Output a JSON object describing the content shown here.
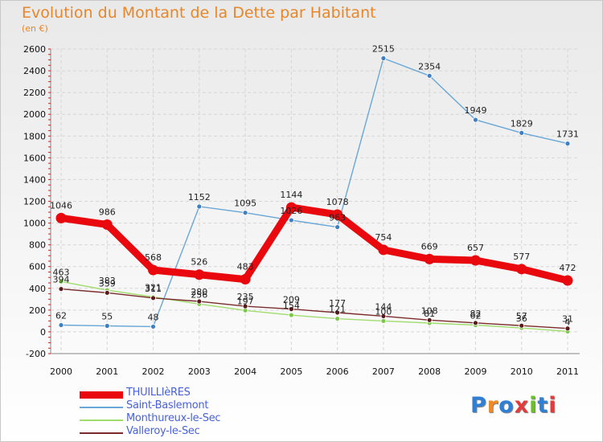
{
  "header": {
    "title": "Evolution du Montant de la Dette par Habitant",
    "unit": "(en €)"
  },
  "brand": {
    "text": "Proxiti",
    "colors": [
      "#2f7fd4",
      "#f08a24",
      "#2f7fd4",
      "#e33b3b",
      "#6cbf2a",
      "#2f7fd4",
      "#e33b3b"
    ]
  },
  "chart_data": {
    "type": "line",
    "title": "Evolution du Montant de la Dette par Habitant",
    "ylabel": "(en €)",
    "xlabel": "",
    "x": [
      "2000",
      "2001",
      "2002",
      "2003",
      "2004",
      "2005",
      "2006",
      "2007",
      "2008",
      "2009",
      "2010",
      "2011"
    ],
    "ylim": [
      -200,
      2600
    ],
    "yticks": [
      -200,
      0,
      200,
      400,
      600,
      800,
      1000,
      1200,
      1400,
      1600,
      1800,
      2000,
      2200,
      2400,
      2600
    ],
    "grid": true,
    "legend_position": "bottom-left",
    "series": [
      {
        "name": "THUILLIèRES",
        "color": "#e8080d",
        "values": [
          1046,
          986,
          568,
          526,
          483,
          1144,
          1078,
          754,
          669,
          657,
          577,
          472
        ]
      },
      {
        "name": "Saint-Baslemont",
        "color": "#6aa7d6",
        "values": [
          62,
          55,
          48,
          1152,
          1095,
          1026,
          963,
          2515,
          2354,
          1949,
          1829,
          1731
        ]
      },
      {
        "name": "Monthureux-le-Sec",
        "color": "#a0dc6e",
        "values": [
          463,
          383,
          321,
          256,
          197,
          154,
          121,
          100,
          81,
          62,
          36,
          4
        ]
      },
      {
        "name": "Valleroy-le-Sec",
        "color": "#7a2b2b",
        "values": [
          394,
          359,
          311,
          280,
          235,
          209,
          177,
          144,
          108,
          82,
          57,
          31
        ]
      }
    ]
  }
}
